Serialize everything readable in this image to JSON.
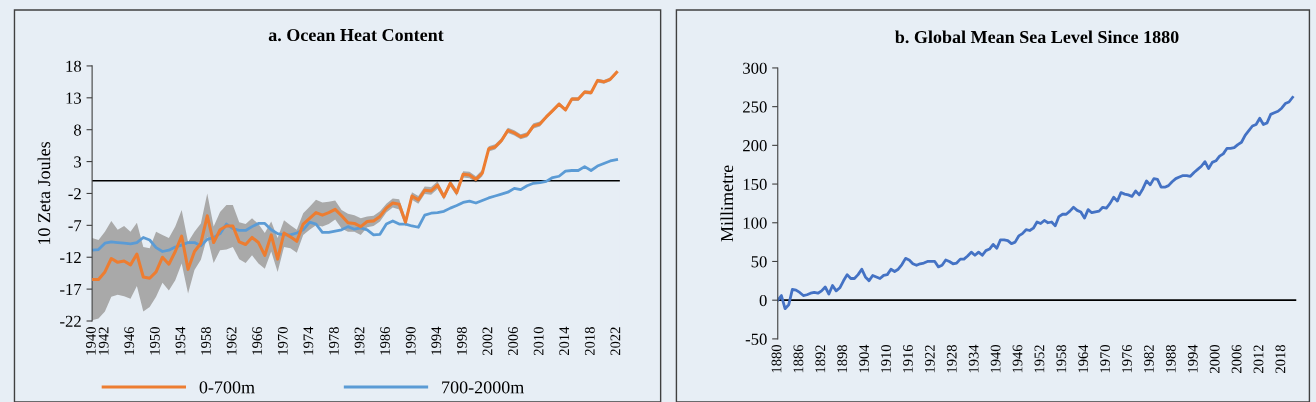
{
  "chart_data": [
    {
      "type": "line",
      "title": "a. Ocean Heat Content",
      "ylabel": "10 Zeta Joules",
      "categories": [
        "1940",
        null,
        "1942",
        null,
        null,
        null,
        "1946",
        null,
        null,
        null,
        "1950",
        null,
        null,
        null,
        "1954",
        null,
        null,
        null,
        "1958",
        null,
        null,
        null,
        "1962",
        null,
        null,
        null,
        "1966",
        null,
        null,
        null,
        "1970",
        null,
        null,
        null,
        "1974",
        null,
        null,
        null,
        "1978",
        null,
        null,
        null,
        "1982",
        null,
        null,
        null,
        "1986",
        null,
        null,
        null,
        "1990",
        null,
        null,
        null,
        "1994",
        null,
        null,
        null,
        "1998",
        null,
        null,
        null,
        "2002",
        null,
        null,
        null,
        "2006",
        null,
        null,
        null,
        "2010",
        null,
        null,
        null,
        "2014",
        null,
        null,
        null,
        "2018",
        null,
        null,
        null,
        "2022"
      ],
      "series": [
        {
          "name": "0-700m",
          "color": "#ed7d31",
          "values": [
            -15.5,
            -15.5,
            -14.3,
            -12.2,
            -12.8,
            -12.6,
            -13.2,
            -11.5,
            -15.1,
            -15.3,
            -14.3,
            -12.0,
            -13.1,
            -11.1,
            -8.7,
            -13.9,
            -11.1,
            -9.8,
            -5.5,
            -9.7,
            -7.7,
            -7.1,
            -7.1,
            -9.6,
            -10.0,
            -8.9,
            -9.7,
            -11.7,
            -8.5,
            -12.3,
            -8.2,
            -8.8,
            -9.5,
            -6.8,
            -5.9,
            -5.0,
            -5.4,
            -5.0,
            -4.5,
            -5.5,
            -6.6,
            -6.7,
            -7.2,
            -6.4,
            -6.3,
            -5.6,
            -4.3,
            -3.5,
            -3.7,
            -6.5,
            -2.4,
            -3.0,
            -1.5,
            -1.6,
            -0.7,
            -2.5,
            -0.4,
            -1.9,
            1.0,
            0.9,
            0.2,
            1.2,
            5.0,
            5.3,
            6.3,
            7.9,
            7.5,
            6.9,
            7.2,
            8.6,
            8.9,
            10.0,
            11.0,
            12.0,
            11.1,
            12.8,
            12.8,
            13.9,
            13.8,
            15.7,
            15.5,
            15.9,
            17.0
          ],
          "lower": [
            -21.9,
            -21.6,
            -20.5,
            -18.2,
            -17.9,
            -18.1,
            -18.5,
            -16.5,
            -20.5,
            -19.8,
            -18.2,
            -16.0,
            -17.2,
            -15.6,
            -13.0,
            -17.7,
            -14.0,
            -12.4,
            -8.8,
            -12.9,
            -10.9,
            -10.8,
            -10.4,
            -12.3,
            -12.9,
            -11.7,
            -13.0,
            -13.8,
            -11.1,
            -14.3,
            -10.4,
            -10.6,
            -11.3,
            -8.5,
            -7.7,
            -7.0,
            -7.2,
            -6.8,
            -6.1,
            -7.5,
            -8.0,
            -8.0,
            -8.5,
            -7.3,
            -7.1,
            -6.4,
            -5.0,
            -4.2,
            -4.5,
            -7.2,
            -3.0,
            -3.6,
            -2.1,
            -2.2,
            -1.3,
            -3.0,
            -0.9,
            -2.4,
            0.5,
            0.4,
            -0.3,
            0.7,
            4.6,
            4.9,
            5.9,
            7.5,
            7.1,
            6.5,
            6.8,
            8.2,
            8.5,
            9.7,
            10.7,
            11.7,
            10.8,
            12.5,
            12.5,
            13.6,
            13.5,
            15.4,
            15.2,
            15.6,
            16.7
          ],
          "upper": [
            -9.0,
            -9.3,
            -8.0,
            -6.3,
            -7.7,
            -7.1,
            -8.0,
            -6.6,
            -10.4,
            -10.6,
            -8.0,
            -8.5,
            -9.0,
            -7.2,
            -4.6,
            -9.6,
            -8.0,
            -6.7,
            -2.0,
            -7.2,
            -4.9,
            -3.8,
            -3.8,
            -6.5,
            -6.8,
            -5.9,
            -6.8,
            -8.2,
            -6.4,
            -9.0,
            -6.2,
            -7.0,
            -7.7,
            -5.1,
            -4.1,
            -3.0,
            -3.4,
            -3.3,
            -3.1,
            -4.6,
            -5.2,
            -5.4,
            -5.9,
            -5.6,
            -5.5,
            -4.8,
            -3.6,
            -2.8,
            -2.9,
            -5.8,
            -1.8,
            -2.4,
            -0.9,
            -1.0,
            -0.1,
            -2.0,
            0.1,
            -1.4,
            1.5,
            1.4,
            0.7,
            1.7,
            5.4,
            5.7,
            6.7,
            8.3,
            7.9,
            7.3,
            7.6,
            9.0,
            9.3,
            10.3,
            11.3,
            12.3,
            11.4,
            13.1,
            13.1,
            14.2,
            14.1,
            16.0,
            15.8,
            16.2,
            17.3
          ]
        },
        {
          "name": "700-2000m",
          "color": "#5b9bd5",
          "values": [
            -10.9,
            -10.8,
            -9.8,
            -9.6,
            -9.7,
            -9.8,
            -9.9,
            -9.7,
            -8.9,
            -9.3,
            -10.5,
            -11.1,
            -10.9,
            -10.4,
            -10.1,
            -9.7,
            -9.7,
            -10.2,
            -9.2,
            -8.9,
            -8.3,
            -6.8,
            -7.5,
            -7.8,
            -7.8,
            -7.2,
            -6.7,
            -6.7,
            -7.7,
            -8.3,
            -8.5,
            -8.5,
            -8.2,
            -7.7,
            -6.5,
            -6.8,
            -8.1,
            -8.1,
            -7.9,
            -7.7,
            -7.2,
            -7.6,
            -7.4,
            -7.7,
            -8.5,
            -8.4,
            -6.8,
            -6.3,
            -6.8,
            -6.8,
            -7.1,
            -7.3,
            -5.4,
            -5.1,
            -5.0,
            -4.8,
            -4.3,
            -3.9,
            -3.4,
            -3.2,
            -3.5,
            -3.1,
            -2.7,
            -2.4,
            -2.1,
            -1.8,
            -1.2,
            -1.4,
            -0.8,
            -0.4,
            -0.3,
            -0.1,
            0.5,
            0.7,
            1.5,
            1.6,
            1.6,
            2.2,
            1.6,
            2.3,
            2.7,
            3.1,
            3.3
          ]
        }
      ],
      "ylim": [
        -22,
        18
      ],
      "yticks": [
        -22,
        -17,
        -12,
        -7,
        -2,
        3,
        8,
        13,
        18
      ],
      "ref_lines": [
        {
          "axis": "y",
          "value": 0,
          "color": "#000000"
        }
      ],
      "legend": "bottom",
      "grid": false
    },
    {
      "type": "line",
      "title": "b. Global Mean Sea Level Since 1880",
      "ylabel": "Millimetre",
      "x": [
        1880,
        1881,
        1882,
        1883,
        1884,
        1885,
        1886,
        1887,
        1888,
        1889,
        1890,
        1891,
        1892,
        1893,
        1894,
        1895,
        1896,
        1897,
        1898,
        1899,
        1900,
        1901,
        1902,
        1903,
        1904,
        1905,
        1906,
        1907,
        1908,
        1909,
        1910,
        1911,
        1912,
        1913,
        1914,
        1915,
        1916,
        1917,
        1918,
        1919,
        1920,
        1921,
        1922,
        1923,
        1924,
        1925,
        1926,
        1927,
        1928,
        1929,
        1930,
        1931,
        1932,
        1933,
        1934,
        1935,
        1936,
        1937,
        1938,
        1939,
        1940,
        1941,
        1942,
        1943,
        1944,
        1945,
        1946,
        1947,
        1948,
        1949,
        1950,
        1951,
        1952,
        1953,
        1954,
        1955,
        1956,
        1957,
        1958,
        1959,
        1960,
        1961,
        1962,
        1963,
        1964,
        1965,
        1966,
        1967,
        1968,
        1969,
        1970,
        1971,
        1972,
        1973,
        1974,
        1975,
        1976,
        1977,
        1978,
        1979,
        1980,
        1981,
        1982,
        1983,
        1984,
        1985,
        1986,
        1987,
        1988,
        1989,
        1990,
        1991,
        1992,
        1993,
        1994,
        1995,
        1996,
        1997,
        1998,
        1999,
        2000,
        2001,
        2002,
        2003,
        2004,
        2005,
        2006,
        2007,
        2008,
        2009,
        2010,
        2011,
        2012,
        2013,
        2014,
        2015,
        2016,
        2017,
        2018,
        2019,
        2020,
        2021
      ],
      "series": [
        {
          "color": "#4472c4",
          "values": [
            0,
            6,
            -11,
            -6,
            14,
            13,
            10,
            6,
            7,
            9,
            10,
            9,
            12,
            17,
            8,
            19,
            12,
            16,
            25,
            33,
            28,
            28,
            33,
            40,
            30,
            25,
            32,
            30,
            28,
            32,
            33,
            40,
            37,
            40,
            46,
            54,
            52,
            47,
            45,
            47,
            48,
            50,
            50,
            50,
            43,
            45,
            52,
            50,
            47,
            48,
            53,
            53,
            57,
            62,
            58,
            62,
            58,
            64,
            66,
            72,
            67,
            78,
            78,
            77,
            73,
            75,
            83,
            86,
            91,
            90,
            93,
            101,
            99,
            103,
            100,
            101,
            96,
            108,
            111,
            111,
            115,
            120,
            116,
            114,
            106,
            117,
            113,
            114,
            115,
            120,
            119,
            125,
            133,
            128,
            139,
            137,
            136,
            134,
            141,
            136,
            144,
            154,
            149,
            157,
            156,
            146,
            146,
            148,
            153,
            157,
            159,
            161,
            161,
            160,
            165,
            169,
            173,
            179,
            170,
            178,
            180,
            186,
            189,
            196,
            196,
            197,
            201,
            204,
            213,
            219,
            225,
            227,
            235,
            227,
            229,
            240,
            242,
            244,
            248,
            254,
            256,
            262
          ]
        }
      ],
      "xlim": [
        1880,
        2022
      ],
      "xticks": [
        1880,
        1886,
        1892,
        1898,
        1904,
        1910,
        1916,
        1922,
        1928,
        1934,
        1940,
        1946,
        1952,
        1958,
        1964,
        1970,
        1976,
        1982,
        1988,
        1994,
        2000,
        2006,
        2012,
        2018
      ],
      "ylim": [
        -50,
        300
      ],
      "yticks": [
        -50,
        0,
        50,
        100,
        150,
        200,
        250,
        300
      ],
      "ref_lines": [
        {
          "axis": "y",
          "value": 0,
          "color": "#000000"
        }
      ],
      "grid": false
    }
  ]
}
